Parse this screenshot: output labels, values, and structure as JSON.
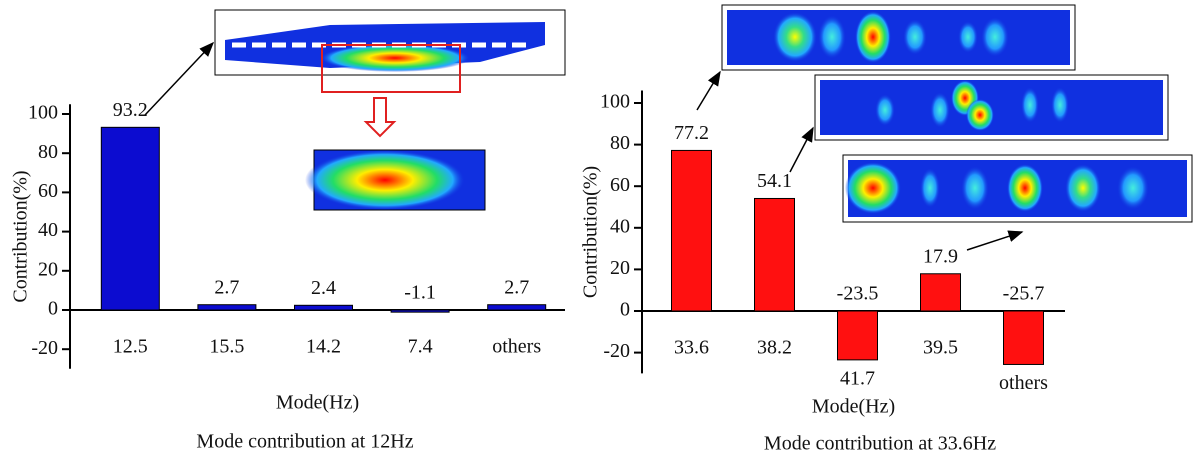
{
  "chart_data": [
    {
      "type": "bar",
      "caption": "Mode contribution at 12Hz",
      "x_label": "Mode(Hz)",
      "y_label": "Contribution(%)",
      "categories": [
        "12.5",
        "15.5",
        "14.2",
        "7.4",
        "others"
      ],
      "values": [
        93.2,
        2.7,
        2.4,
        -1.1,
        2.7
      ],
      "color": "#0c0cd0",
      "ylim": [
        -30,
        105
      ],
      "yticks": [
        -20,
        0,
        20,
        40,
        60,
        80,
        100
      ]
    },
    {
      "type": "bar",
      "caption": "Mode contribution at 33.6Hz",
      "x_label": "Mode(Hz)",
      "y_label": "Contribution(%)",
      "categories": [
        "33.6",
        "38.2",
        "41.7",
        "39.5",
        "others"
      ],
      "values": [
        77.2,
        54.1,
        -23.5,
        17.9,
        -25.7
      ],
      "color": "#ff1010",
      "ylim": [
        -30,
        106
      ],
      "yticks": [
        -20,
        0,
        20,
        40,
        60,
        80,
        100
      ]
    }
  ]
}
